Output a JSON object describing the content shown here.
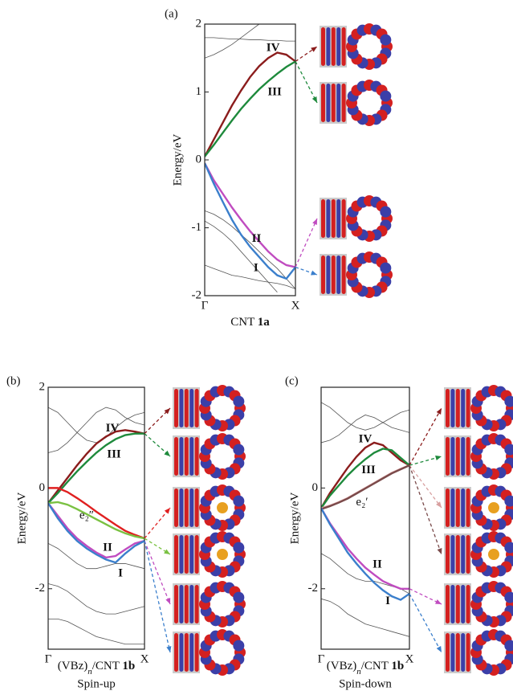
{
  "chart_data": [
    {
      "type": "line",
      "panel_label": "(a)",
      "y_label": "Energy/eV",
      "x_label_parts": [
        "CNT ",
        "1a"
      ],
      "xlim": [
        0,
        1
      ],
      "xticks": [
        {
          "value": 0,
          "label": "Γ"
        },
        {
          "value": 1,
          "label": "X"
        }
      ],
      "ylim": [
        -2,
        2
      ],
      "yticks": [
        -2,
        -1,
        0,
        1,
        2
      ],
      "x": [
        0,
        0.1,
        0.2,
        0.3,
        0.4,
        0.5,
        0.6,
        0.7,
        0.8,
        0.9,
        1
      ],
      "series": [
        {
          "color": "#555555",
          "values": [
            1.8,
            1.8,
            1.79,
            1.78,
            1.78,
            1.77,
            1.77,
            1.76,
            1.76,
            1.75,
            1.75
          ]
        },
        {
          "color": "#555555",
          "values": [
            1.5,
            1.55,
            1.62,
            1.7,
            1.8,
            1.9,
            2.0,
            null,
            null,
            null,
            null
          ]
        },
        {
          "color": "#555555",
          "values": [
            -0.75,
            -0.8,
            -0.88,
            -0.98,
            -1.1,
            -1.22,
            -1.35,
            -1.48,
            -1.6,
            -1.75,
            -1.9
          ]
        },
        {
          "color": "#555555",
          "values": [
            -1.55,
            -1.6,
            -1.65,
            -1.7,
            -1.72,
            -1.75,
            -1.78,
            -1.8,
            -1.82,
            -1.85,
            -1.9
          ]
        },
        {
          "color": "#555555",
          "values": [
            -0.9,
            -0.98,
            -1.08,
            -1.2,
            -1.35,
            -1.5,
            -1.65,
            -1.8,
            -1.95,
            null,
            null
          ]
        },
        {
          "name": "IV",
          "color": "#8b1c1c",
          "values": [
            0.05,
            0.3,
            0.55,
            0.8,
            1.02,
            1.22,
            1.38,
            1.5,
            1.58,
            1.55,
            1.45
          ]
        },
        {
          "name": "III",
          "color": "#1e8a3c",
          "values": [
            0.05,
            0.22,
            0.4,
            0.58,
            0.75,
            0.9,
            1.04,
            1.16,
            1.27,
            1.37,
            1.45
          ]
        },
        {
          "name": "II",
          "color": "#c04cc0",
          "values": [
            -0.05,
            -0.3,
            -0.5,
            -0.7,
            -0.88,
            -1.05,
            -1.2,
            -1.35,
            -1.47,
            -1.55,
            -1.58
          ]
        },
        {
          "name": "I",
          "color": "#3b7fcc",
          "values": [
            -0.05,
            -0.35,
            -0.62,
            -0.88,
            -1.1,
            -1.28,
            -1.43,
            -1.58,
            -1.7,
            -1.75,
            -1.58
          ]
        }
      ]
    },
    {
      "type": "line",
      "panel_label": "(b)",
      "y_label": "Energy/eV",
      "x_label_parts": [
        "(VBz)",
        "n",
        "/CNT ",
        "1b"
      ],
      "subtitle": "Spin-up",
      "xlim": [
        0,
        1
      ],
      "xticks": [
        {
          "value": 0,
          "label": "Γ"
        },
        {
          "value": 1,
          "label": "X"
        }
      ],
      "ylim": [
        -3.2,
        2
      ],
      "yticks": [
        -2,
        0,
        2
      ],
      "x": [
        0,
        0.1,
        0.2,
        0.3,
        0.4,
        0.5,
        0.6,
        0.7,
        0.8,
        0.9,
        1
      ],
      "series": [
        {
          "color": "#555555",
          "values": [
            1.6,
            1.5,
            1.3,
            1.1,
            0.95,
            0.9,
            1.0,
            1.2,
            1.35,
            1.45,
            1.5
          ]
        },
        {
          "color": "#555555",
          "values": [
            0.7,
            0.75,
            0.9,
            1.1,
            1.3,
            1.5,
            1.6,
            1.55,
            1.4,
            1.3,
            1.25
          ]
        },
        {
          "color": "#555555",
          "values": [
            -1.1,
            -1.2,
            -1.35,
            -1.5,
            -1.6,
            -1.6,
            -1.55,
            -1.5,
            -1.5,
            -1.55,
            -1.6
          ]
        },
        {
          "color": "#555555",
          "values": [
            -1.9,
            -1.95,
            -2.05,
            -2.2,
            -2.35,
            -2.45,
            -2.5,
            -2.5,
            -2.45,
            -2.4,
            -2.35
          ]
        },
        {
          "color": "#555555",
          "values": [
            -2.6,
            -2.6,
            -2.65,
            -2.75,
            -2.85,
            -2.95,
            -3.0,
            -3.05,
            -3.1,
            -3.1,
            -3.1
          ]
        },
        {
          "name": "IV",
          "color": "#8b1c1c",
          "values": [
            -0.3,
            -0.05,
            0.2,
            0.45,
            0.68,
            0.88,
            1.02,
            1.12,
            1.15,
            1.12,
            1.08
          ]
        },
        {
          "name": "III",
          "color": "#1e8a3c",
          "values": [
            -0.3,
            -0.1,
            0.12,
            0.33,
            0.52,
            0.7,
            0.85,
            0.97,
            1.05,
            1.08,
            1.08
          ]
        },
        {
          "name": "e₂″",
          "color": "#e02020",
          "values": [
            0,
            0,
            -0.08,
            -0.2,
            -0.33,
            -0.47,
            -0.6,
            -0.73,
            -0.85,
            -0.93,
            -1.0
          ]
        },
        {
          "color": "#7ac142",
          "values": [
            -0.3,
            -0.28,
            -0.33,
            -0.42,
            -0.52,
            -0.62,
            -0.72,
            -0.82,
            -0.9,
            -0.96,
            -1.0
          ]
        },
        {
          "name": "II",
          "color": "#c04cc0",
          "values": [
            -0.3,
            -0.55,
            -0.8,
            -1.0,
            -1.15,
            -1.28,
            -1.38,
            -1.35,
            -1.22,
            -1.1,
            -1.05
          ]
        },
        {
          "name": "I",
          "color": "#3b7fcc",
          "values": [
            -0.3,
            -0.6,
            -0.85,
            -1.05,
            -1.2,
            -1.32,
            -1.42,
            -1.48,
            -1.3,
            -1.15,
            -1.05
          ]
        }
      ]
    },
    {
      "type": "line",
      "panel_label": "(c)",
      "y_label": "Energy/eV",
      "x_label_parts": [
        "(VBz)",
        "n",
        "/CNT ",
        "1b"
      ],
      "subtitle": "Spin-down",
      "xlim": [
        0,
        1
      ],
      "xticks": [
        {
          "value": 0,
          "label": "Γ"
        },
        {
          "value": 1,
          "label": "X"
        }
      ],
      "ylim": [
        -3.2,
        2
      ],
      "yticks": [
        -2,
        0
      ],
      "x": [
        0,
        0.1,
        0.2,
        0.3,
        0.4,
        0.5,
        0.6,
        0.7,
        0.8,
        0.9,
        1
      ],
      "series": [
        {
          "color": "#555555",
          "values": [
            1.7,
            1.6,
            1.45,
            1.3,
            1.2,
            1.15,
            1.2,
            1.3,
            1.4,
            1.5,
            1.55
          ]
        },
        {
          "color": "#555555",
          "values": [
            0.9,
            0.95,
            1.05,
            1.2,
            1.35,
            1.45,
            1.4,
            1.3,
            1.2,
            1.15,
            1.1
          ]
        },
        {
          "color": "#555555",
          "values": [
            -1.3,
            -1.4,
            -1.55,
            -1.7,
            -1.8,
            -1.85,
            -1.85,
            -1.9,
            -1.95,
            -2.0,
            -2.1
          ]
        },
        {
          "color": "#555555",
          "values": [
            -2.2,
            -2.25,
            -2.35,
            -2.5,
            -2.6,
            -2.7,
            -2.75,
            -2.8,
            -2.85,
            -2.9,
            -2.95
          ]
        },
        {
          "name": "IV",
          "color": "#8b1c1c",
          "values": [
            -0.4,
            -0.1,
            0.15,
            0.4,
            0.62,
            0.8,
            0.9,
            0.85,
            0.7,
            0.55,
            0.45
          ]
        },
        {
          "name": "III",
          "color": "#1e8a3c",
          "values": [
            -0.4,
            -0.15,
            0.05,
            0.25,
            0.42,
            0.57,
            0.7,
            0.78,
            0.75,
            0.6,
            0.45
          ]
        },
        {
          "name": "e₂′",
          "color": "#d8a0a0",
          "values": [
            -0.4,
            -0.35,
            -0.28,
            -0.2,
            -0.1,
            0,
            0.1,
            0.2,
            0.3,
            0.38,
            0.45
          ]
        },
        {
          "color": "#7a4a4a",
          "values": [
            -0.42,
            -0.36,
            -0.29,
            -0.21,
            -0.11,
            -0.01,
            0.09,
            0.19,
            0.29,
            0.37,
            0.45
          ]
        },
        {
          "name": "II",
          "color": "#c04cc0",
          "values": [
            -0.4,
            -0.7,
            -0.95,
            -1.2,
            -1.4,
            -1.58,
            -1.72,
            -1.85,
            -1.93,
            -2.0,
            -2.0
          ]
        },
        {
          "name": "I",
          "color": "#3b7fcc",
          "values": [
            -0.4,
            -0.72,
            -1.0,
            -1.28,
            -1.5,
            -1.7,
            -1.88,
            -2.03,
            -2.15,
            -2.22,
            -2.1
          ]
        }
      ]
    }
  ]
}
